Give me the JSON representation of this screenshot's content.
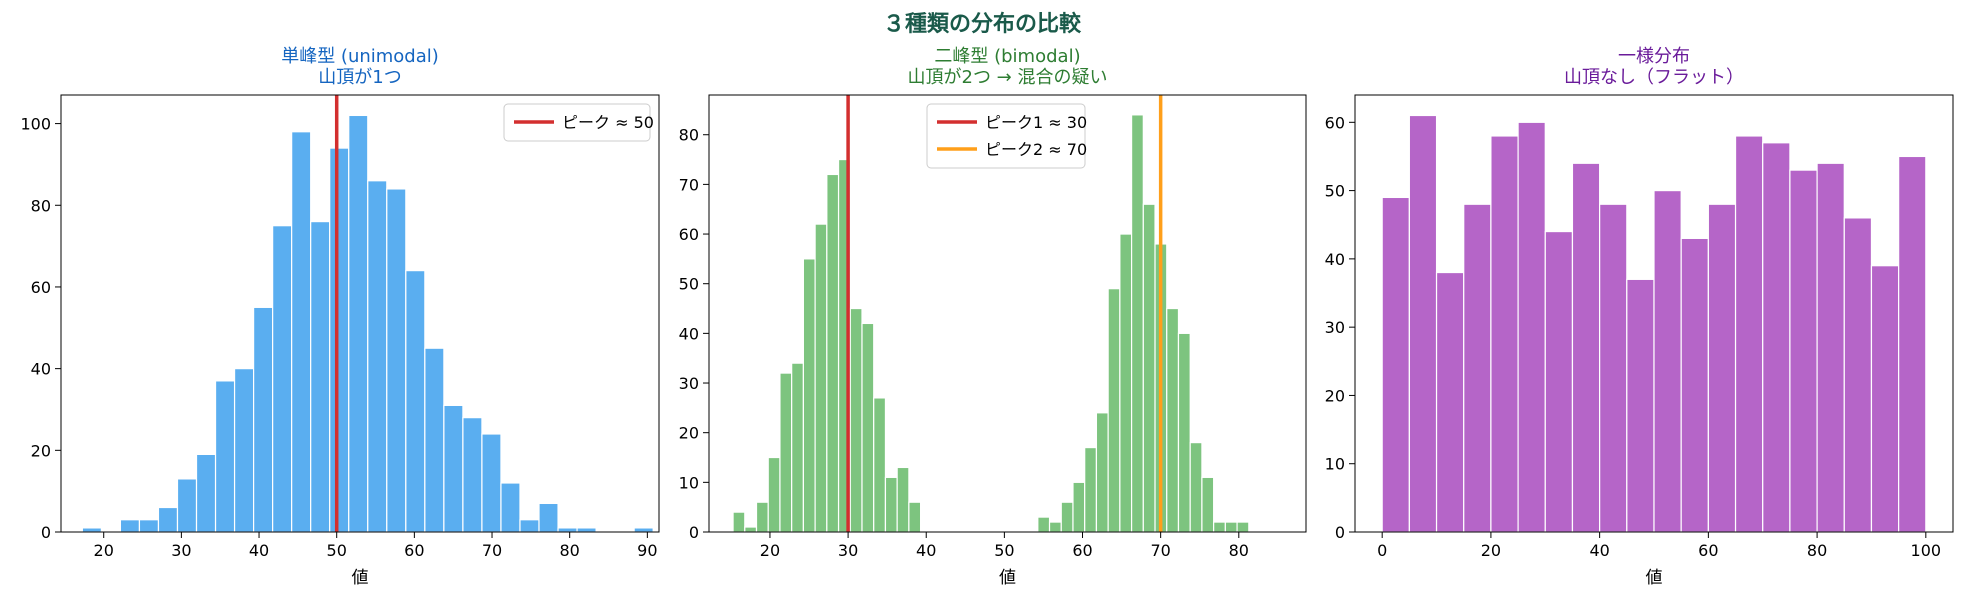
{
  "title": "３種類の分布の比較",
  "title_color": "#1a5a4a",
  "chart_data": [
    {
      "type": "bar",
      "title": "単峰型 (unimodal)\n山頂が1つ",
      "title_color": "#1565c0",
      "xlabel": "値",
      "ylabel": "",
      "xlim": [
        14.5,
        91.5
      ],
      "ylim": [
        0,
        107
      ],
      "xticks": [
        20,
        30,
        40,
        50,
        60,
        70,
        80,
        90
      ],
      "yticks": [
        0,
        20,
        40,
        60,
        80,
        100
      ],
      "bar_color": "#5aaef0",
      "bins": {
        "start": 17.25,
        "width": 2.45,
        "values": [
          1,
          0,
          3,
          3,
          6,
          13,
          19,
          37,
          40,
          55,
          75,
          98,
          76,
          94,
          102,
          86,
          84,
          64,
          45,
          31,
          28,
          24,
          12,
          3,
          7,
          1,
          1,
          0,
          0,
          1
        ]
      },
      "vlines": [
        {
          "x": 50,
          "label": "ピーク ≈ 50",
          "color": "#d32f2f"
        }
      ],
      "legend": "upper right"
    },
    {
      "type": "bar",
      "title": "二峰型 (bimodal)\n山頂が2つ → 混合の疑い",
      "title_color": "#2e7d32",
      "xlabel": "値",
      "ylabel": "",
      "xlim": [
        12.2,
        88.6
      ],
      "ylim": [
        0,
        88
      ],
      "xticks": [
        20,
        30,
        40,
        50,
        60,
        70,
        80
      ],
      "yticks": [
        0,
        10,
        20,
        30,
        40,
        50,
        60,
        70,
        80
      ],
      "bar_color": "#7dc47f",
      "bins": {
        "start": 15.28,
        "width": 1.5,
        "values": [
          4,
          1,
          6,
          15,
          32,
          34,
          55,
          62,
          72,
          75,
          45,
          42,
          27,
          11,
          13,
          6,
          0,
          0,
          0,
          0,
          0,
          0,
          0,
          0,
          0,
          0,
          3,
          2,
          6,
          10,
          17,
          24,
          49,
          60,
          84,
          66,
          58,
          45,
          40,
          18,
          11,
          2,
          2,
          2
        ]
      },
      "vlines": [
        {
          "x": 30,
          "label": "ピーク1 ≈ 30",
          "color": "#d32f2f"
        },
        {
          "x": 70,
          "label": "ピーク2 ≈ 70",
          "color": "#ff9f1a"
        }
      ],
      "legend": "upper center"
    },
    {
      "type": "bar",
      "title": "一様分布\n山頂なし（フラット）",
      "title_color": "#6a1b9a",
      "xlabel": "値",
      "ylabel": "",
      "xlim": [
        -5,
        105
      ],
      "ylim": [
        0,
        64
      ],
      "xticks": [
        0,
        20,
        40,
        60,
        80,
        100
      ],
      "yticks": [
        0,
        10,
        20,
        30,
        40,
        50,
        60
      ],
      "bar_color": "#b565c8",
      "bins": {
        "start": 0,
        "width": 5,
        "values": [
          49,
          61,
          38,
          48,
          58,
          60,
          44,
          54,
          48,
          37,
          50,
          43,
          48,
          58,
          57,
          53,
          54,
          46,
          39,
          55
        ]
      },
      "vlines": [],
      "legend": "none"
    }
  ]
}
